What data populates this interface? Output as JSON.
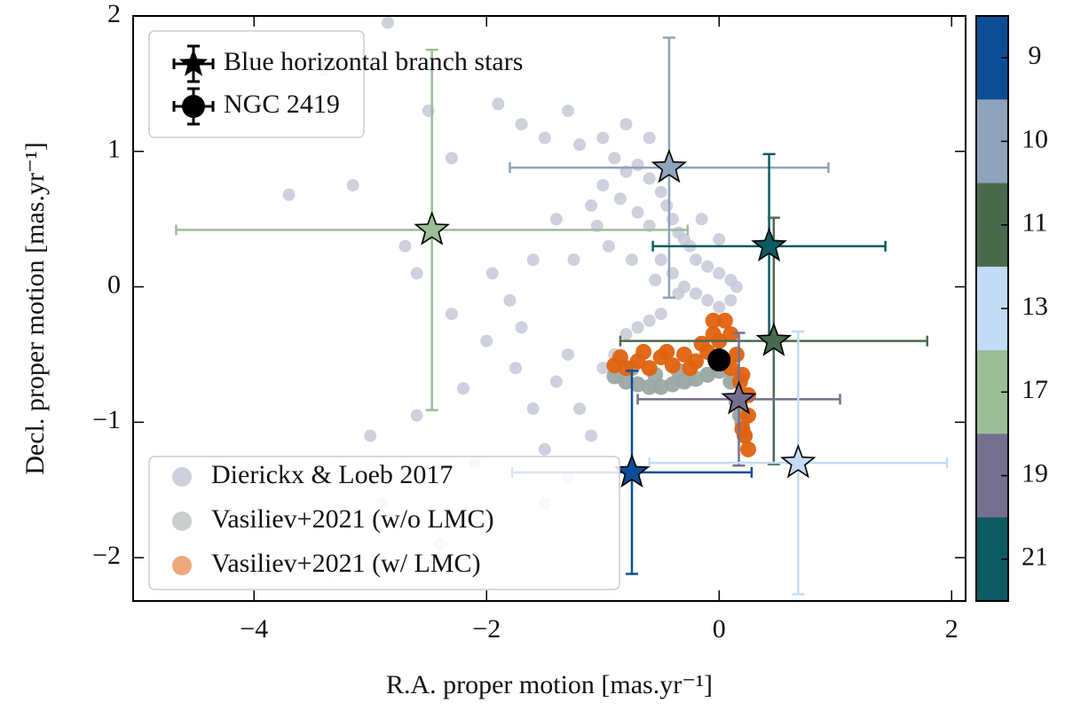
{
  "chart_data": {
    "type": "scatter",
    "xlabel": "R.A. proper motion [mas.yr⁻¹]",
    "ylabel": "Decl. proper motion [mas.yr⁻¹]",
    "xlim": [
      -5.04,
      2.12
    ],
    "ylim": [
      -2.32,
      2
    ],
    "xticks": [
      {
        "value": -4,
        "label": "−4"
      },
      {
        "value": -2,
        "label": "−2"
      },
      0,
      2
    ],
    "yticks": [
      {
        "value": -2,
        "label": "−2"
      },
      {
        "value": -1,
        "label": "−1"
      },
      0,
      1,
      2
    ],
    "series": [
      {
        "name": "Dierickx & Loeb 2017",
        "color": "#c5c8d8",
        "x": [
          -3.7,
          -3.15,
          -2.85,
          -3.4,
          -2.7,
          -2.3,
          -1.9,
          -1.7,
          -1.5,
          -1.3,
          -1.2,
          -1.0,
          -0.9,
          -0.8,
          -0.7,
          -0.6,
          -0.5,
          -0.45,
          -0.4,
          -0.35,
          -0.3,
          -0.25,
          -0.2,
          -0.1,
          0,
          0.1,
          0.15,
          0.1,
          0,
          -0.1,
          -0.2,
          -0.3,
          -0.4,
          -0.5,
          -0.6,
          -0.7,
          -0.85,
          -1.0,
          -1.1,
          -1.4,
          -1.6,
          -1.8,
          -2.0,
          -2.2,
          -1.75,
          -1.6,
          -1.5,
          -1.4,
          -1.3,
          -1.2,
          -1.1,
          -1.0,
          -0.9,
          -0.8,
          -0.7,
          -0.6,
          -0.5,
          -1.3,
          -1.5,
          -2.1,
          -2.6,
          -3.0,
          -2.4,
          -3.3,
          -2.9,
          -1.95,
          -2.3,
          -2.6,
          -1.25,
          -0.95,
          -0.75,
          -0.55,
          -0.35,
          -0.15,
          0,
          -0.6,
          -0.8,
          -1.05,
          -1.7,
          -2.5
        ],
        "y": [
          0.68,
          0.75,
          1.95,
          1.6,
          0.3,
          0.95,
          1.35,
          1.2,
          1.1,
          1.3,
          1.05,
          1.1,
          0.95,
          0.85,
          0.9,
          0.8,
          0.7,
          0.6,
          0.5,
          0.4,
          0.35,
          0.3,
          0.2,
          0.15,
          0.1,
          0.05,
          0.0,
          -0.1,
          -0.15,
          -0.1,
          -0.05,
          0.0,
          0.1,
          0.2,
          0.45,
          0.55,
          0.65,
          0.75,
          0.6,
          0.5,
          0.2,
          -0.1,
          -0.4,
          -0.75,
          -0.6,
          -0.9,
          -1.2,
          -0.7,
          -0.5,
          -0.9,
          -1.1,
          -0.6,
          -0.5,
          -0.35,
          -0.3,
          -0.25,
          -0.2,
          -1.4,
          -1.6,
          -1.3,
          -0.95,
          -1.1,
          -1.9,
          -2.1,
          -1.6,
          0.1,
          -0.2,
          0.1,
          0.2,
          0.3,
          0.2,
          0.05,
          -0.05,
          0.5,
          0.35,
          1.1,
          1.2,
          0.45,
          -0.3,
          1.3
        ]
      },
      {
        "name": "Vasiliev+2021 (w/o LMC)",
        "color": "#9aa8a4",
        "x": [
          -0.9,
          -0.8,
          -0.7,
          -0.6,
          -0.5,
          -0.4,
          -0.3,
          -0.2,
          -0.1,
          0.0,
          0.1,
          0.15,
          0.2,
          0.22,
          0.18,
          -0.75,
          -0.55,
          -0.35
        ],
        "y": [
          -0.66,
          -0.7,
          -0.72,
          -0.74,
          -0.74,
          -0.72,
          -0.7,
          -0.68,
          -0.65,
          -0.62,
          -0.7,
          -0.85,
          -1.0,
          -1.1,
          -0.95,
          -0.6,
          -0.65,
          -0.62
        ]
      },
      {
        "name": "Vasiliev+2021 (w/ LMC)",
        "color": "#e0620e",
        "x": [
          -0.85,
          -0.8,
          -0.7,
          -0.6,
          -0.5,
          -0.4,
          -0.3,
          -0.2,
          -0.1,
          -0.05,
          -0.05,
          0.05,
          0.0,
          0.1,
          0.15,
          0.2,
          0.25,
          0.25,
          0.22,
          0.25,
          0.18,
          0.1,
          -0.65,
          -0.45,
          -0.25,
          -0.9,
          -0.15,
          0.2
        ],
        "y": [
          -0.52,
          -0.6,
          -0.55,
          -0.6,
          -0.52,
          -0.58,
          -0.5,
          -0.55,
          -0.48,
          -0.35,
          -0.25,
          -0.25,
          -0.4,
          -0.35,
          -0.5,
          -0.65,
          -0.8,
          -0.95,
          -1.1,
          -1.2,
          -0.7,
          -0.6,
          -0.48,
          -0.48,
          -0.6,
          -0.58,
          -0.42,
          -1.05
        ]
      }
    ],
    "stars": {
      "name": "Blue horizontal branch stars",
      "x": [
        -2.47,
        -0.43,
        0.43,
        0.47,
        0.17,
        0.68,
        -0.75
      ],
      "y": [
        0.42,
        0.88,
        0.3,
        -0.4,
        -0.83,
        -1.3,
        -1.37
      ],
      "xerr": [
        2.2,
        1.37,
        1.0,
        1.32,
        0.87,
        1.28,
        1.03
      ],
      "yerr": [
        1.33,
        0.96,
        0.68,
        0.91,
        0.49,
        0.97,
        0.75
      ],
      "colors": [
        "#9bbd98",
        "#8fa3bd",
        "#0c5b62",
        "#4a6a4e",
        "#756f8f",
        "#c3dcf5",
        "#0d4d96"
      ]
    },
    "cluster": {
      "name": "NGC 2419",
      "x": [
        0
      ],
      "y": [
        -0.54
      ],
      "color": "#000000"
    },
    "colorbar": {
      "labels": [
        "9",
        "10",
        "11",
        "13",
        "17",
        "19",
        "21"
      ],
      "colors": [
        "#0d4d96",
        "#8fa3bd",
        "#4a6a4e",
        "#c3dcf5",
        "#9bbd98",
        "#756f8f",
        "#0c5b62"
      ]
    }
  }
}
